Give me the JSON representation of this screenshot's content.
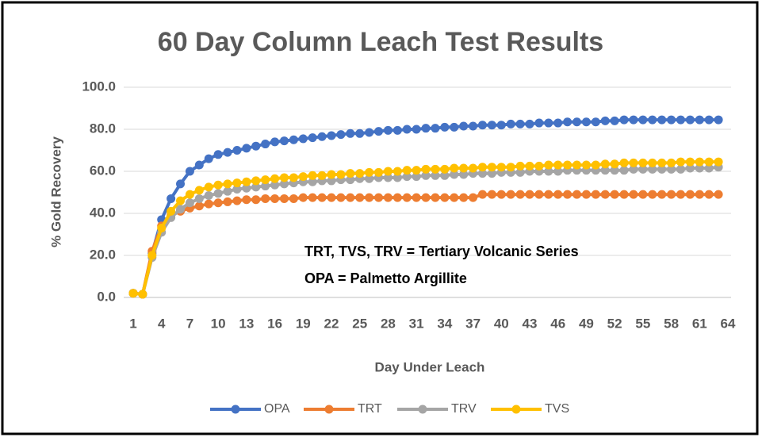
{
  "chart_data": {
    "type": "line",
    "title": "60 Day Column Leach Test Results",
    "x_label": "Day Under Leach",
    "y_label": "% Gold Recovery",
    "annotations": [
      "TRT, TVS, TRV = Tertiary Volcanic Series",
      "OPA = Palmetto Argillite"
    ],
    "categories": [
      1,
      null,
      null,
      4,
      null,
      null,
      7,
      null,
      null,
      10,
      null,
      null,
      13,
      null,
      null,
      16,
      null,
      null,
      19,
      null,
      null,
      22,
      null,
      null,
      25,
      null,
      null,
      28,
      null,
      null,
      31,
      null,
      null,
      34,
      null,
      null,
      37,
      null,
      null,
      40,
      null,
      null,
      43,
      null,
      null,
      46,
      null,
      null,
      49,
      null,
      null,
      52,
      null,
      null,
      55,
      null,
      null,
      58,
      null,
      null,
      61,
      null,
      null,
      64
    ],
    "ylim": [
      0,
      100
    ],
    "yticks": [
      {
        "value": 0,
        "label": "0.0"
      },
      {
        "value": 20,
        "label": "20.0"
      },
      {
        "value": 40,
        "label": "40.0"
      },
      {
        "value": 60,
        "label": "60.0"
      },
      {
        "value": 80,
        "label": "80.0"
      },
      {
        "value": 100,
        "label": "100.0"
      }
    ],
    "grid": true,
    "legend": "bottom",
    "series": [
      {
        "name": "OPA",
        "color": "#4472c4",
        "values": [
          2,
          1.5,
          21,
          37,
          47,
          54,
          60,
          63,
          66,
          68,
          69,
          70,
          71,
          72,
          73,
          74,
          74.5,
          75,
          75.5,
          76,
          76.5,
          77,
          77.5,
          78,
          78,
          78.5,
          79,
          79.5,
          79.5,
          80,
          80,
          80.5,
          80.5,
          81,
          81,
          81.5,
          81.5,
          82,
          82,
          82,
          82.5,
          82.5,
          82.5,
          83,
          83,
          83,
          83.5,
          83.5,
          83.5,
          83.5,
          84,
          84,
          84.5,
          84.5,
          84.5,
          84.5,
          84.5,
          84.5,
          84.5,
          84.5,
          84.5,
          84.5,
          84.5,
          null
        ]
      },
      {
        "name": "TRT",
        "color": "#ed7d31",
        "values": [
          2,
          1.5,
          22,
          34,
          39,
          41,
          42.5,
          43.5,
          44.5,
          45,
          45.5,
          46,
          46.5,
          46.5,
          47,
          47,
          47,
          47,
          47.5,
          47.5,
          47.5,
          47.5,
          47.5,
          47.5,
          47.5,
          47.5,
          47.5,
          47.5,
          47.5,
          47.5,
          47.5,
          47.5,
          47.5,
          47.5,
          47.5,
          47.5,
          47.5,
          49,
          49,
          49,
          49,
          49,
          49,
          49,
          49,
          49,
          49,
          49,
          49,
          49,
          49,
          49,
          49,
          49,
          49,
          49,
          49,
          49,
          49,
          49,
          49,
          49,
          49,
          null
        ]
      },
      {
        "name": "TRV",
        "color": "#a5a5a5",
        "values": [
          2,
          1.5,
          19,
          31,
          38,
          42,
          45,
          47,
          48.5,
          49.5,
          50.5,
          51.5,
          52,
          52.5,
          53,
          53.5,
          54,
          54.5,
          55,
          55,
          55.5,
          55.5,
          56,
          56,
          56.5,
          56.5,
          57,
          57,
          57,
          57.5,
          57.5,
          58,
          58,
          58,
          58.5,
          58.5,
          59,
          59,
          59,
          59.5,
          59.5,
          59.5,
          60,
          60,
          60,
          60,
          60.5,
          60.5,
          60.5,
          60.5,
          60.5,
          60.5,
          60.5,
          61,
          61,
          61,
          61,
          61,
          61,
          61.5,
          61.5,
          61.5,
          62,
          null
        ]
      },
      {
        "name": "TVS",
        "color": "#ffc000",
        "values": [
          2,
          1.5,
          20,
          33,
          41,
          46,
          49,
          51,
          52.5,
          53.5,
          54,
          54.5,
          55,
          55.5,
          56,
          56.5,
          57,
          57,
          57.5,
          58,
          58,
          58.5,
          58.5,
          59,
          59,
          59.5,
          59.5,
          60,
          60,
          60.5,
          60.5,
          61,
          61,
          61,
          61.5,
          61.5,
          61.5,
          62,
          62,
          62,
          62,
          62.5,
          62.5,
          62.5,
          63,
          63,
          63,
          63,
          63,
          63,
          63.5,
          63.5,
          64,
          64,
          64,
          64,
          64,
          64,
          64.5,
          64.5,
          64.5,
          64.5,
          64.5,
          null
        ]
      }
    ]
  }
}
